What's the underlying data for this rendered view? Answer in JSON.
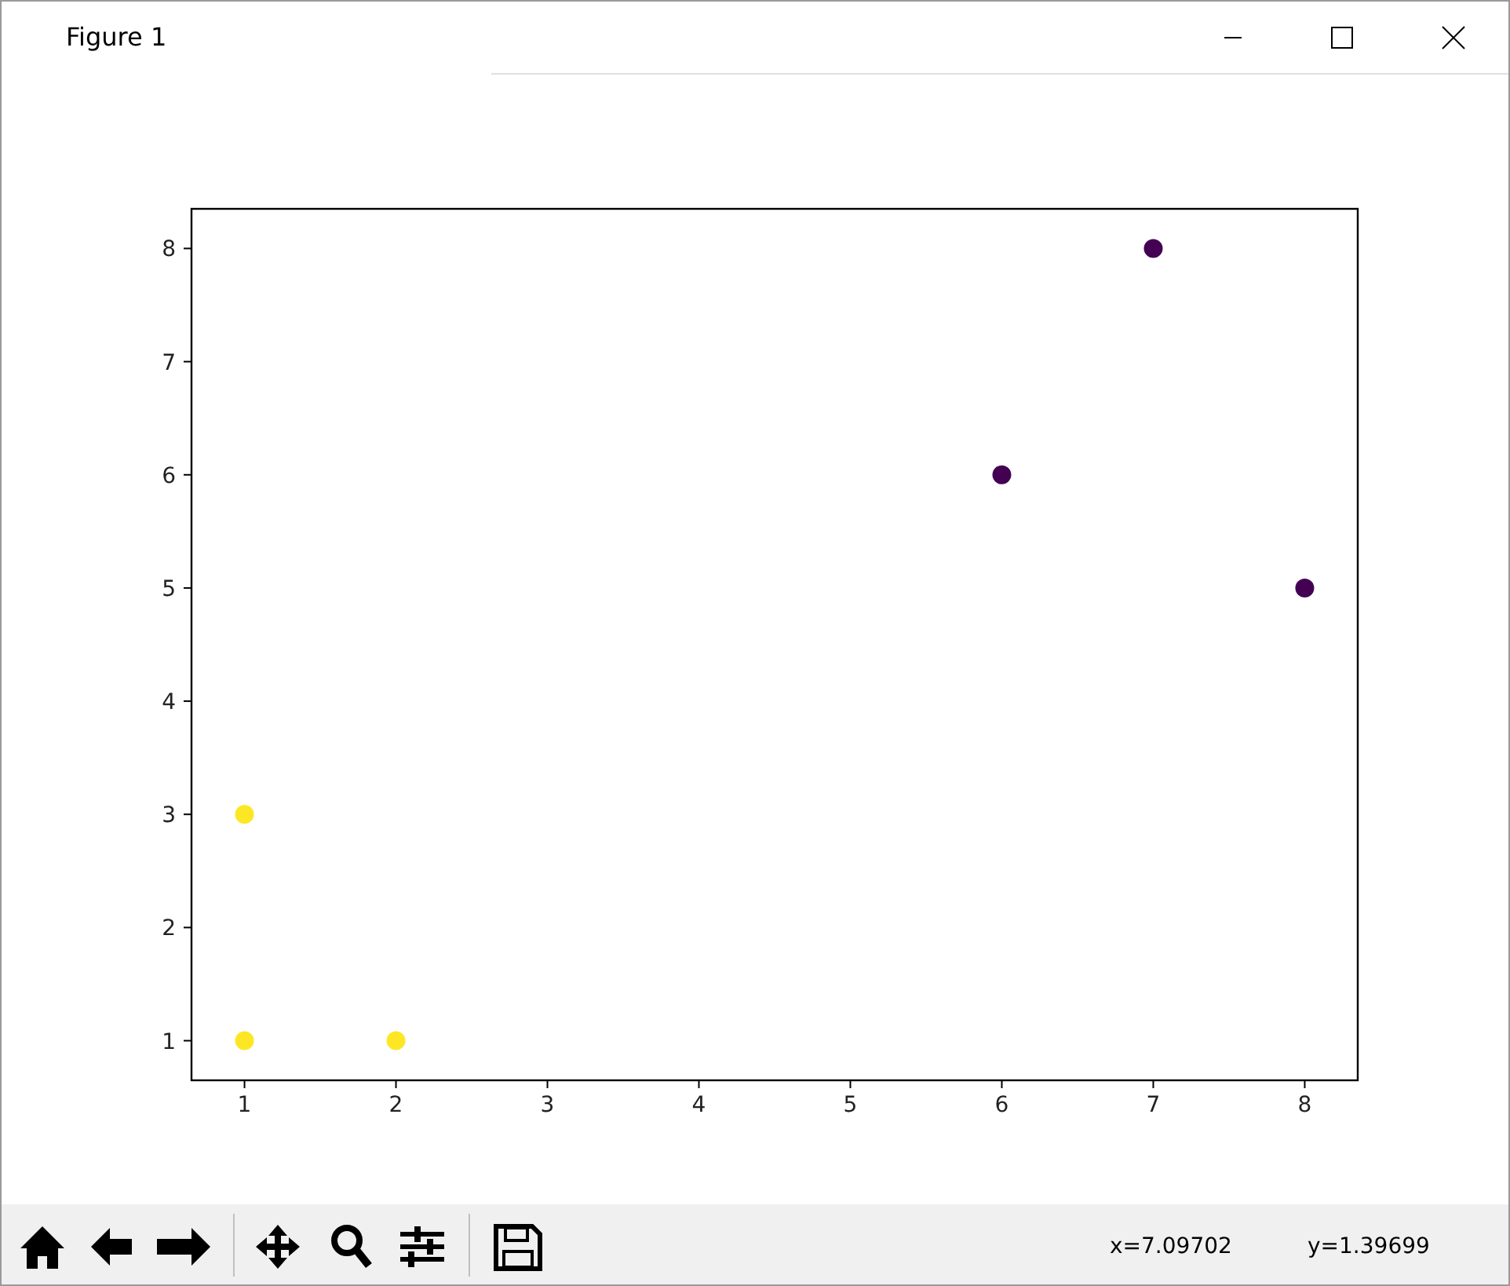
{
  "chart_data": {
    "type": "scatter",
    "title": "Figure 1",
    "xlim": [
      0.65,
      8.35
    ],
    "ylim": [
      0.65,
      8.35
    ],
    "xticks": [
      1,
      2,
      3,
      4,
      5,
      6,
      7,
      8
    ],
    "yticks": [
      1,
      2,
      3,
      4,
      5,
      6,
      7,
      8
    ],
    "series": [
      {
        "color": "#fde725",
        "x": [
          1,
          1,
          2
        ],
        "values": [
          1,
          3,
          1
        ]
      },
      {
        "color": "#440154",
        "x": [
          6,
          7,
          8
        ],
        "values": [
          6,
          8,
          5
        ]
      }
    ],
    "marker": "circle",
    "grid": false,
    "annotations": [
      "x=7.09702",
      "y=1.39699"
    ]
  }
}
